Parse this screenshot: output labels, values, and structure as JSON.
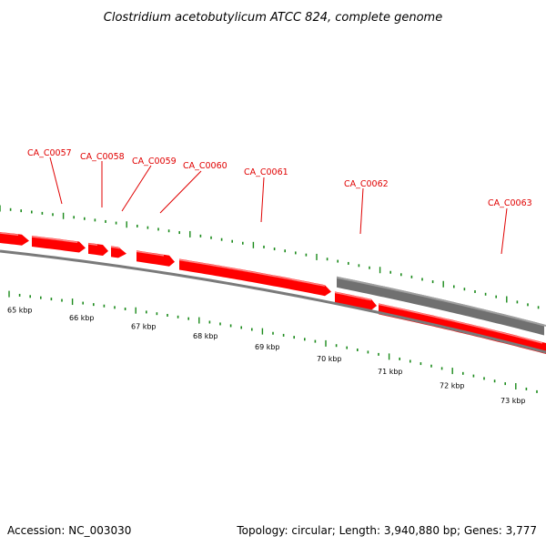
{
  "title": "Clostridium acetobutylicum ATCC 824, complete genome",
  "accession": "Accession: NC_003030",
  "summary": "Topology: circular; Length: 3,940,880 bp; Genes: 3,777",
  "colors": {
    "gene": "#ff0000",
    "gene_highlight": "#ff8080",
    "gray_feature": "#707070",
    "backbone": "#808080",
    "tick": "#1a8a1a",
    "label": "#e00000"
  },
  "gene_labels": [
    "CA_C0057",
    "CA_C0058",
    "CA_C0059",
    "CA_C0060",
    "CA_C0061",
    "CA_C0062",
    "CA_C0063"
  ],
  "kbp_labels": [
    "65 kbp",
    "66 kbp",
    "67 kbp",
    "68 kbp",
    "69 kbp",
    "70 kbp",
    "71 kbp",
    "72 kbp",
    "73 kbp"
  ]
}
